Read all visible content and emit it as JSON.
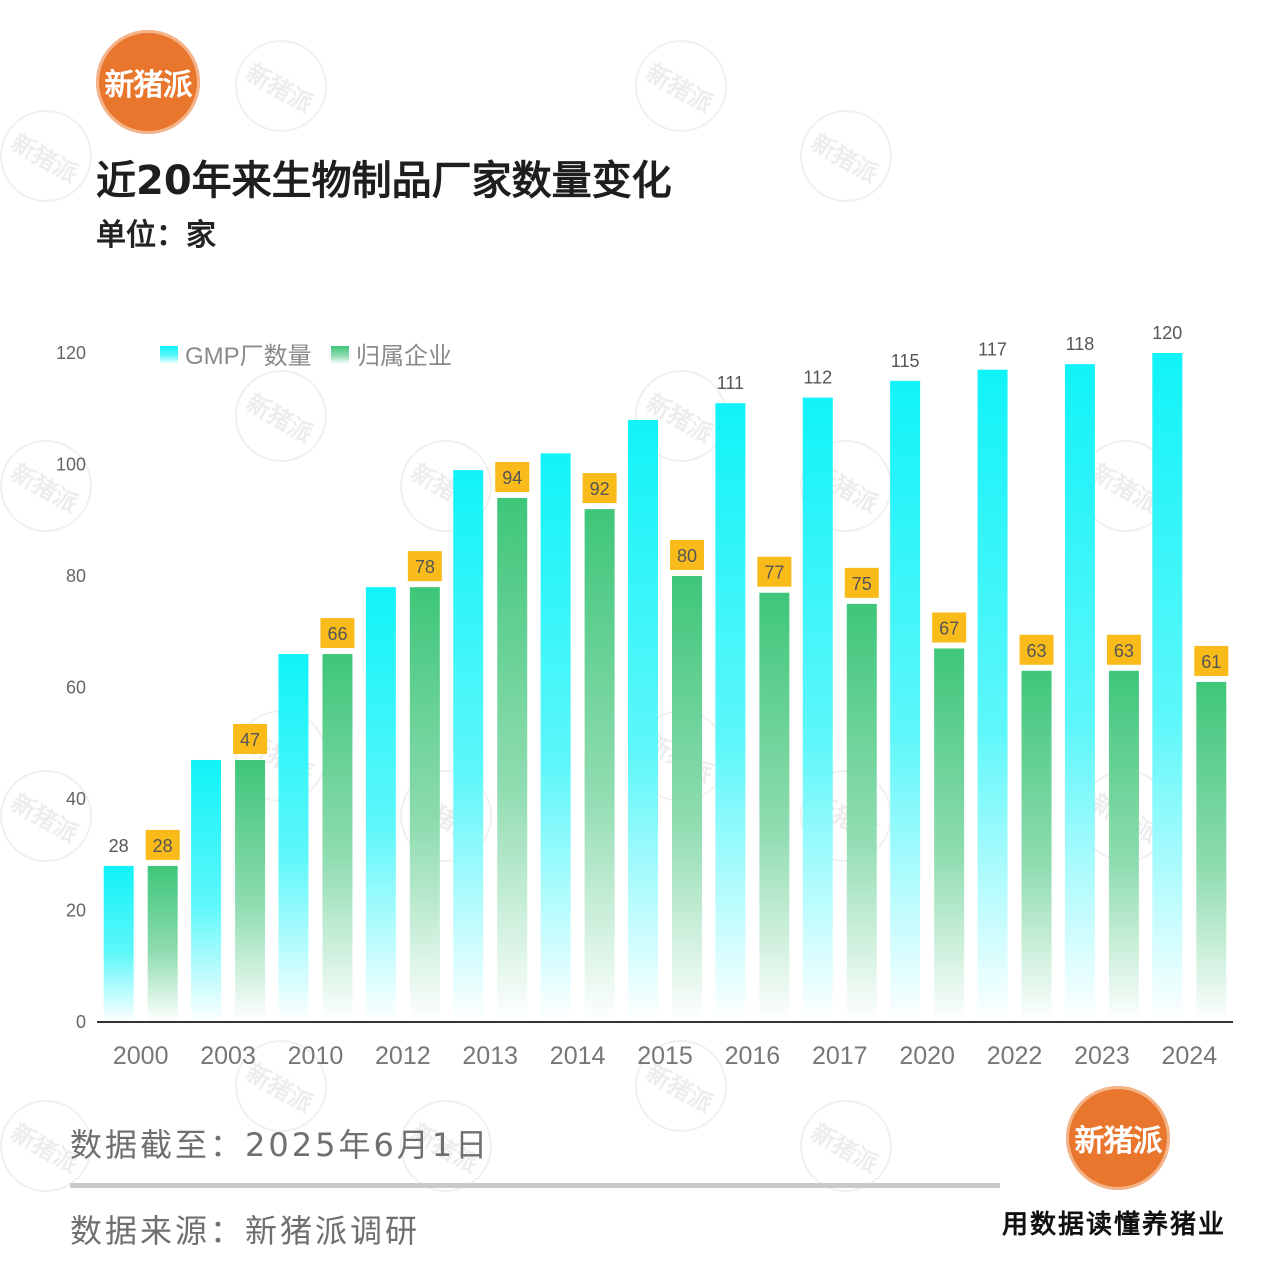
{
  "brand": {
    "logo_text": "新猪派",
    "slogan": "用数据读懂养猪业"
  },
  "header": {
    "title": "近20年来生物制品厂家数量变化",
    "unit": "单位：家"
  },
  "footer": {
    "data_cutoff": "数据截至：2025年6月1日",
    "source": "数据来源：新猪派调研"
  },
  "colors": {
    "gmp": "#16f2f7",
    "parent": "#3cc47a",
    "label_bg": "#f8bb1a",
    "axis": "#333333"
  },
  "chart_data": {
    "type": "bar",
    "categories": [
      "2000",
      "2003",
      "2010",
      "2012",
      "2013",
      "2014",
      "2015",
      "2016",
      "2017",
      "2020",
      "2022",
      "2023",
      "2024"
    ],
    "series": [
      {
        "name": "GMP厂数量",
        "values": [
          28,
          47,
          66,
          78,
          99,
          102,
          108,
          111,
          112,
          115,
          117,
          118,
          120
        ],
        "labels": [
          "28",
          "",
          "",
          "",
          "",
          "",
          "",
          "111",
          "112",
          "115",
          "117",
          "118",
          "120"
        ]
      },
      {
        "name": "归属企业",
        "values": [
          28,
          47,
          66,
          78,
          94,
          92,
          80,
          77,
          75,
          67,
          63,
          63,
          61
        ],
        "labels": [
          "28",
          "47",
          "66",
          "78",
          "94",
          "92",
          "80",
          "77",
          "75",
          "67",
          "63",
          "63",
          "61"
        ]
      }
    ],
    "ylim": [
      0,
      120
    ],
    "yticks": [
      0,
      20,
      40,
      60,
      80,
      100,
      120
    ],
    "legend": "top-left",
    "grid": false
  }
}
